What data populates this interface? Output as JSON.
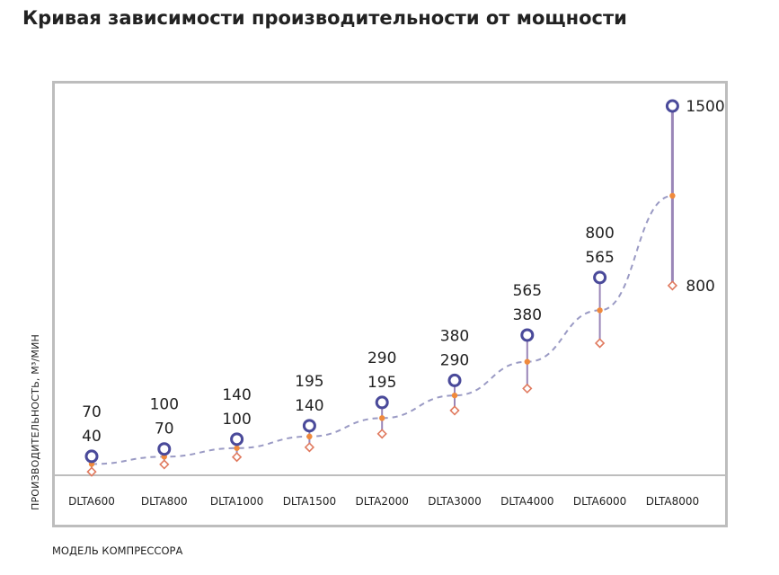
{
  "title": "Кривая зависимости производительности от мощности",
  "chart_data": {
    "type": "line",
    "title": "Кривая зависимости производительности от мощности",
    "xlabel": "МОДЕЛЬ КОМПРЕССОРА",
    "ylabel": "ПРОИЗВОДИТЕЛЬНОСТЬ, М³/МИН",
    "categories": [
      "DLTA600",
      "DLTA800",
      "DLTA1000",
      "DLTA1500",
      "DLTA2000",
      "DLTA3000",
      "DLTA4000",
      "DLTA6000",
      "DLTA8000"
    ],
    "max": [
      70,
      100,
      140,
      195,
      290,
      380,
      565,
      800,
      1500
    ],
    "min": [
      40,
      70,
      100,
      140,
      195,
      290,
      380,
      565,
      800
    ],
    "max_labels": [
      "70",
      "100",
      "140",
      "195",
      "290",
      "380",
      "565",
      "800",
      "1500"
    ],
    "min_labels": [
      "40",
      "70",
      "100",
      "140",
      "195",
      "290",
      "380",
      "565",
      "800"
    ],
    "ylim": [
      0,
      1500
    ],
    "grid": false,
    "colors": {
      "max": "#4a4a9a",
      "min": "#e07a5f",
      "mid": "#f08a3c",
      "line": "#9a9ac4",
      "range": "#9a86b8"
    }
  }
}
